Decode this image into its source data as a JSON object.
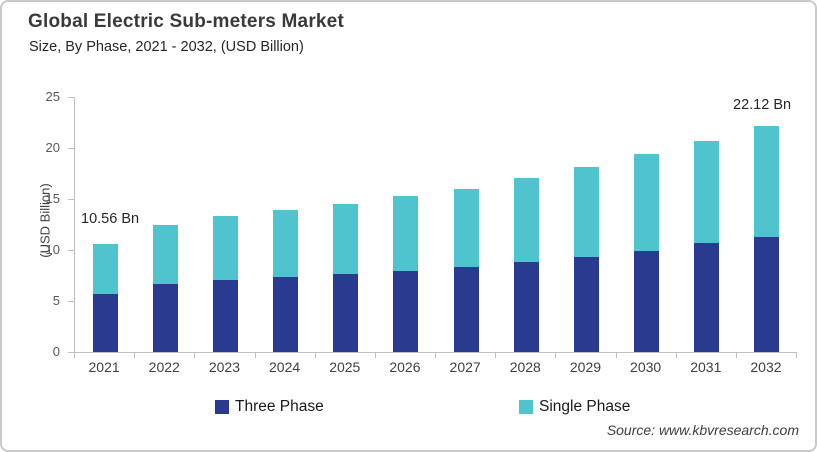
{
  "header": {
    "title": "Global Electric Sub-meters Market",
    "subtitle": "Size, By Phase, 2021 - 2032, (USD Billion)"
  },
  "chart_data": {
    "type": "bar",
    "stacked": true,
    "title": "Global Electric Sub-meters Market Size, By Phase, 2021 - 2032, (USD Billion)",
    "categories": [
      "2021",
      "2022",
      "2023",
      "2024",
      "2025",
      "2026",
      "2027",
      "2028",
      "2029",
      "2030",
      "2031",
      "2032"
    ],
    "series": [
      {
        "name": "Three Phase",
        "color": "#2a3a8f",
        "values": [
          5.65,
          6.64,
          7.05,
          7.33,
          7.62,
          7.92,
          8.31,
          8.8,
          9.29,
          9.95,
          10.67,
          11.26
        ]
      },
      {
        "name": "Single Phase",
        "color": "#4fc3ce",
        "values": [
          4.91,
          5.86,
          6.3,
          6.6,
          6.85,
          7.35,
          7.72,
          8.28,
          8.81,
          9.42,
          10.05,
          10.86
        ]
      }
    ],
    "totals": [
      10.56,
      12.5,
      13.35,
      13.93,
      14.47,
      15.27,
      16.03,
      17.08,
      18.1,
      19.37,
      20.72,
      22.12
    ],
    "ylabel": "(USD Billion)",
    "ylim": [
      0,
      25
    ],
    "yticks": [
      0,
      5,
      10,
      15,
      20,
      25
    ],
    "grid": false,
    "legend_position": "bottom",
    "annotations": [
      {
        "category": "2021",
        "label": "10.56 Bn"
      },
      {
        "category": "2032",
        "label": "22.12 Bn"
      }
    ]
  },
  "source": "Source: www.kbvresearch.com"
}
